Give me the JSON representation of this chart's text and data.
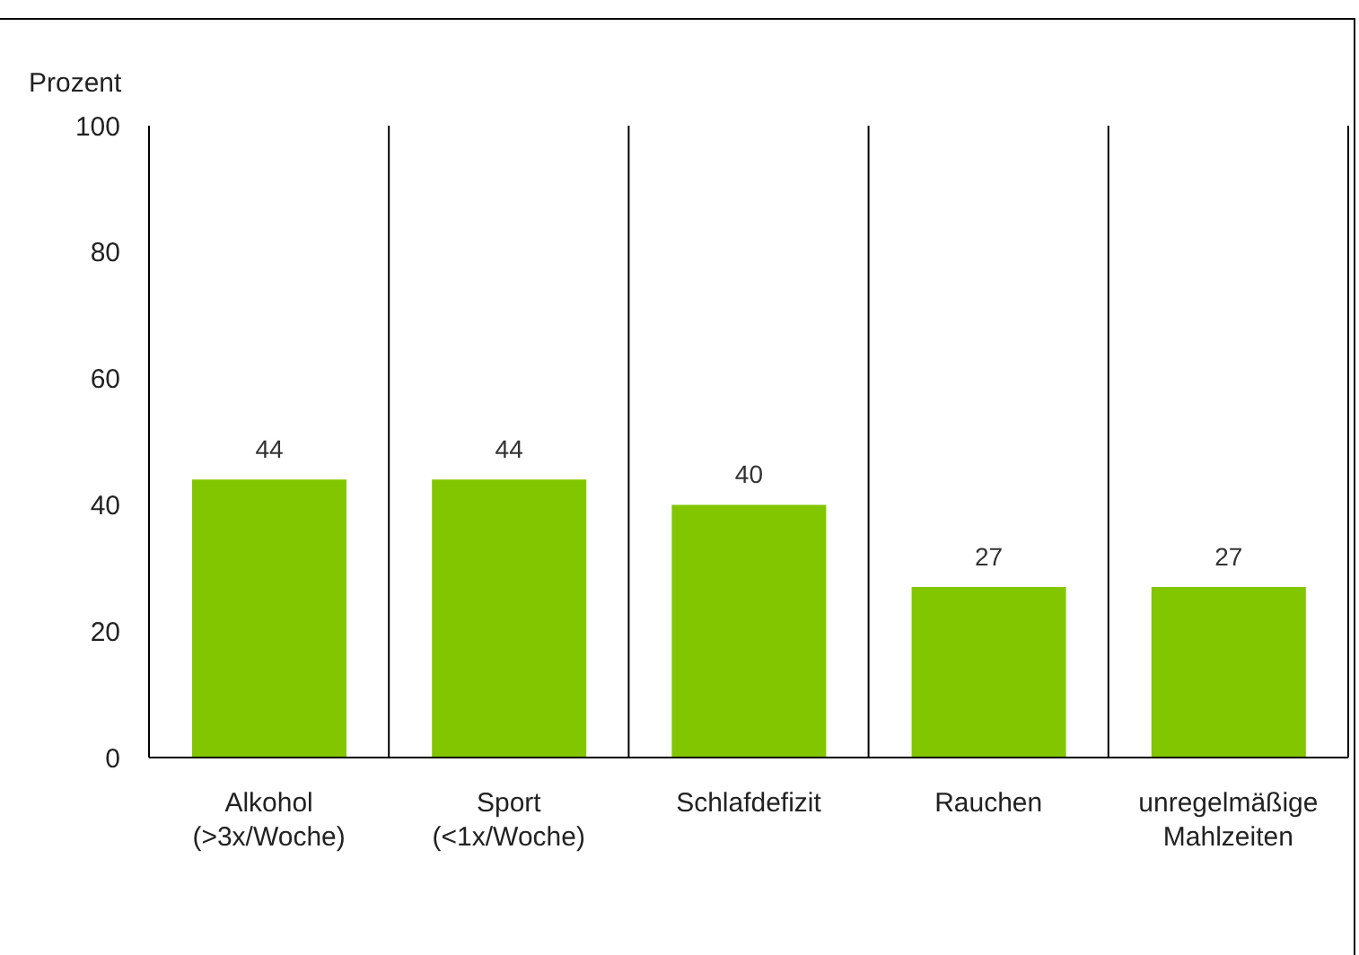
{
  "chart_data": {
    "type": "bar",
    "ylabel": "Prozent",
    "categories": [
      "Alkohol (>3x/Woche)",
      "Sport (<1x/Woche)",
      "Schlafdefizit",
      "Rauchen",
      "unregelmäßige Mahlzeiten"
    ],
    "values": [
      44,
      44,
      40,
      27,
      27
    ],
    "color": "#82c600",
    "ylim": [
      0,
      100
    ],
    "yticks": [
      0,
      20,
      40,
      60,
      80,
      100
    ],
    "grid": "x",
    "data_labels": true
  }
}
